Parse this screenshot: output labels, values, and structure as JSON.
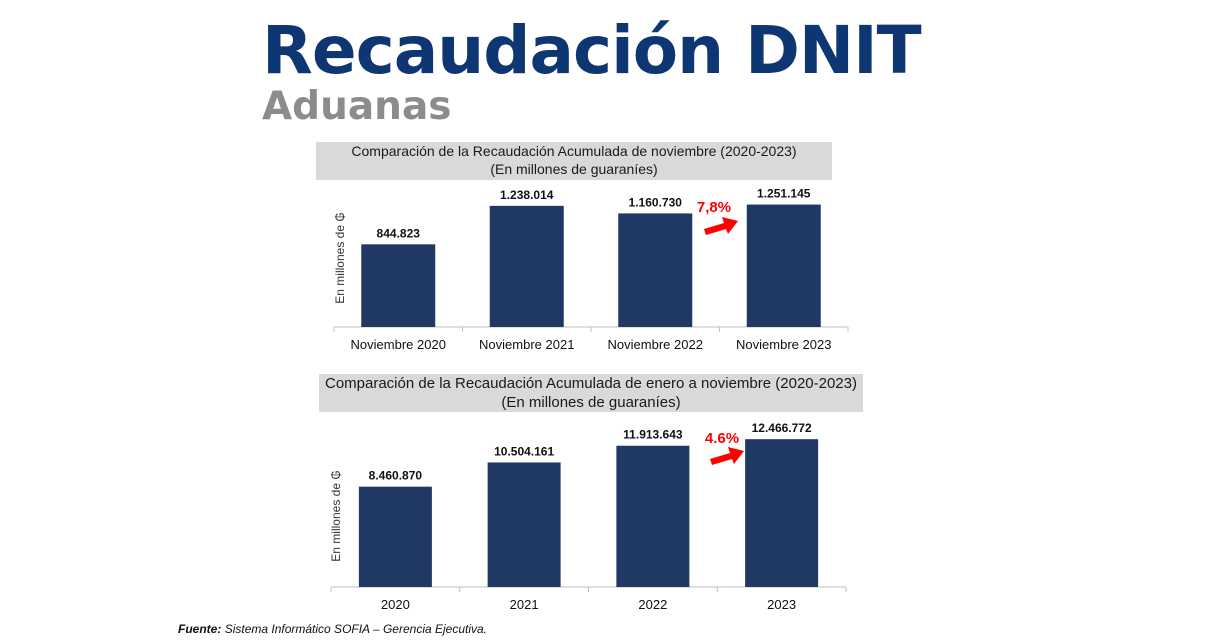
{
  "title": "Recaudación DNIT",
  "subtitle": "Aduanas",
  "source": {
    "label": "Fuente:",
    "text": "Sistema Informático SOFIA – Gerencia Ejecutiva."
  },
  "colors": {
    "bar": "#203864",
    "arrow": "#ff0000",
    "header_bg": "#d9d9d9",
    "title": "#0e3672",
    "subtitle": "#8c8c8c"
  },
  "chart_data": [
    {
      "type": "bar",
      "title": "Comparación de la Recaudación Acumulada de noviembre (2020-2023)",
      "subtitle": "(En millones de guaraníes)",
      "ylabel": "En millones de ₲",
      "xlabel": "",
      "categories": [
        "Noviembre 2020",
        "Noviembre 2021",
        "Noviembre 2022",
        "Noviembre 2023"
      ],
      "values": [
        844823,
        1238014,
        1160730,
        1251145
      ],
      "value_labels": [
        "844.823",
        "1.238.014",
        "1.160.730",
        "1.251.145"
      ],
      "ylim": [
        0,
        1400000
      ],
      "grid": false,
      "annotation": {
        "text": "7,8%",
        "from_category": "Noviembre 2022",
        "to_category": "Noviembre 2023"
      }
    },
    {
      "type": "bar",
      "title": "Comparación de la Recaudación Acumulada de enero a noviembre (2020-2023)",
      "subtitle": "(En millones de guaraníes)",
      "ylabel": "En millones de ₲",
      "xlabel": "",
      "categories": [
        "2020",
        "2021",
        "2022",
        "2023"
      ],
      "values": [
        8460870,
        10504161,
        11913643,
        12466772
      ],
      "value_labels": [
        "8.460.870",
        "10.504.161",
        "11.913.643",
        "12.466.772"
      ],
      "ylim": [
        0,
        14000000
      ],
      "grid": false,
      "annotation": {
        "text": "4.6%",
        "from_category": "2022",
        "to_category": "2023"
      }
    }
  ]
}
